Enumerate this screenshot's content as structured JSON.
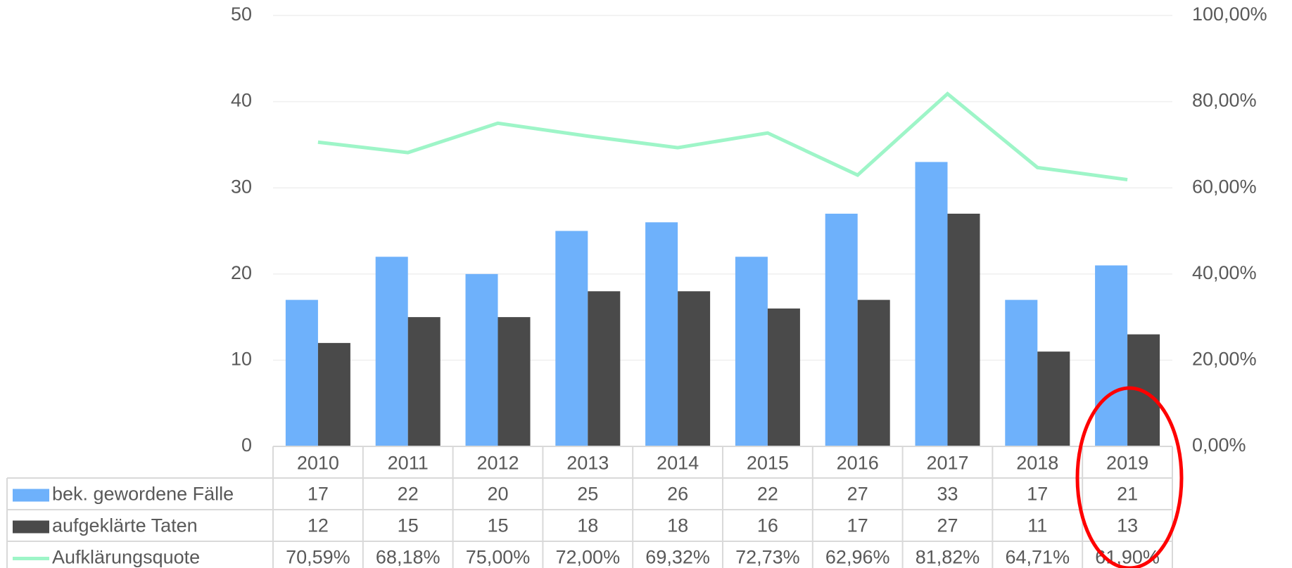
{
  "chart_data": {
    "type": "bar",
    "categories": [
      "2010",
      "2011",
      "2012",
      "2013",
      "2014",
      "2015",
      "2016",
      "2017",
      "2018",
      "2019"
    ],
    "series": [
      {
        "name": "bek. gewordene Fälle",
        "color": "#6eb1fb",
        "values": [
          17,
          22,
          20,
          25,
          26,
          22,
          27,
          33,
          17,
          21
        ]
      },
      {
        "name": "aufgeklärte Taten",
        "color": "#4a4a4a",
        "values": [
          12,
          15,
          15,
          18,
          18,
          16,
          17,
          27,
          11,
          13
        ]
      },
      {
        "name": "Aufklärungsquote",
        "color": "#9ef5c8",
        "type": "line",
        "axis": "y2",
        "values": [
          70.59,
          68.18,
          75.0,
          72.0,
          69.32,
          72.73,
          62.96,
          81.82,
          64.71,
          61.9
        ],
        "value_labels": [
          "70,59%",
          "68,18%",
          "75,00%",
          "72,00%",
          "69,32%",
          "72,73%",
          "62,96%",
          "81,82%",
          "64,71%",
          "61,90%"
        ]
      }
    ],
    "ylim": [
      0,
      50
    ],
    "yticks": [
      0,
      10,
      20,
      30,
      40,
      50
    ],
    "y2lim": [
      0,
      100
    ],
    "y2ticks": [
      {
        "value": 0,
        "label": "0,00%"
      },
      {
        "value": 20,
        "label": "20,00%"
      },
      {
        "value": 40,
        "label": "40,00%"
      },
      {
        "value": 60,
        "label": "60,00%"
      },
      {
        "value": 80,
        "label": "80,00%"
      },
      {
        "value": 100,
        "label": "100,00%"
      }
    ],
    "grid": true
  }
}
